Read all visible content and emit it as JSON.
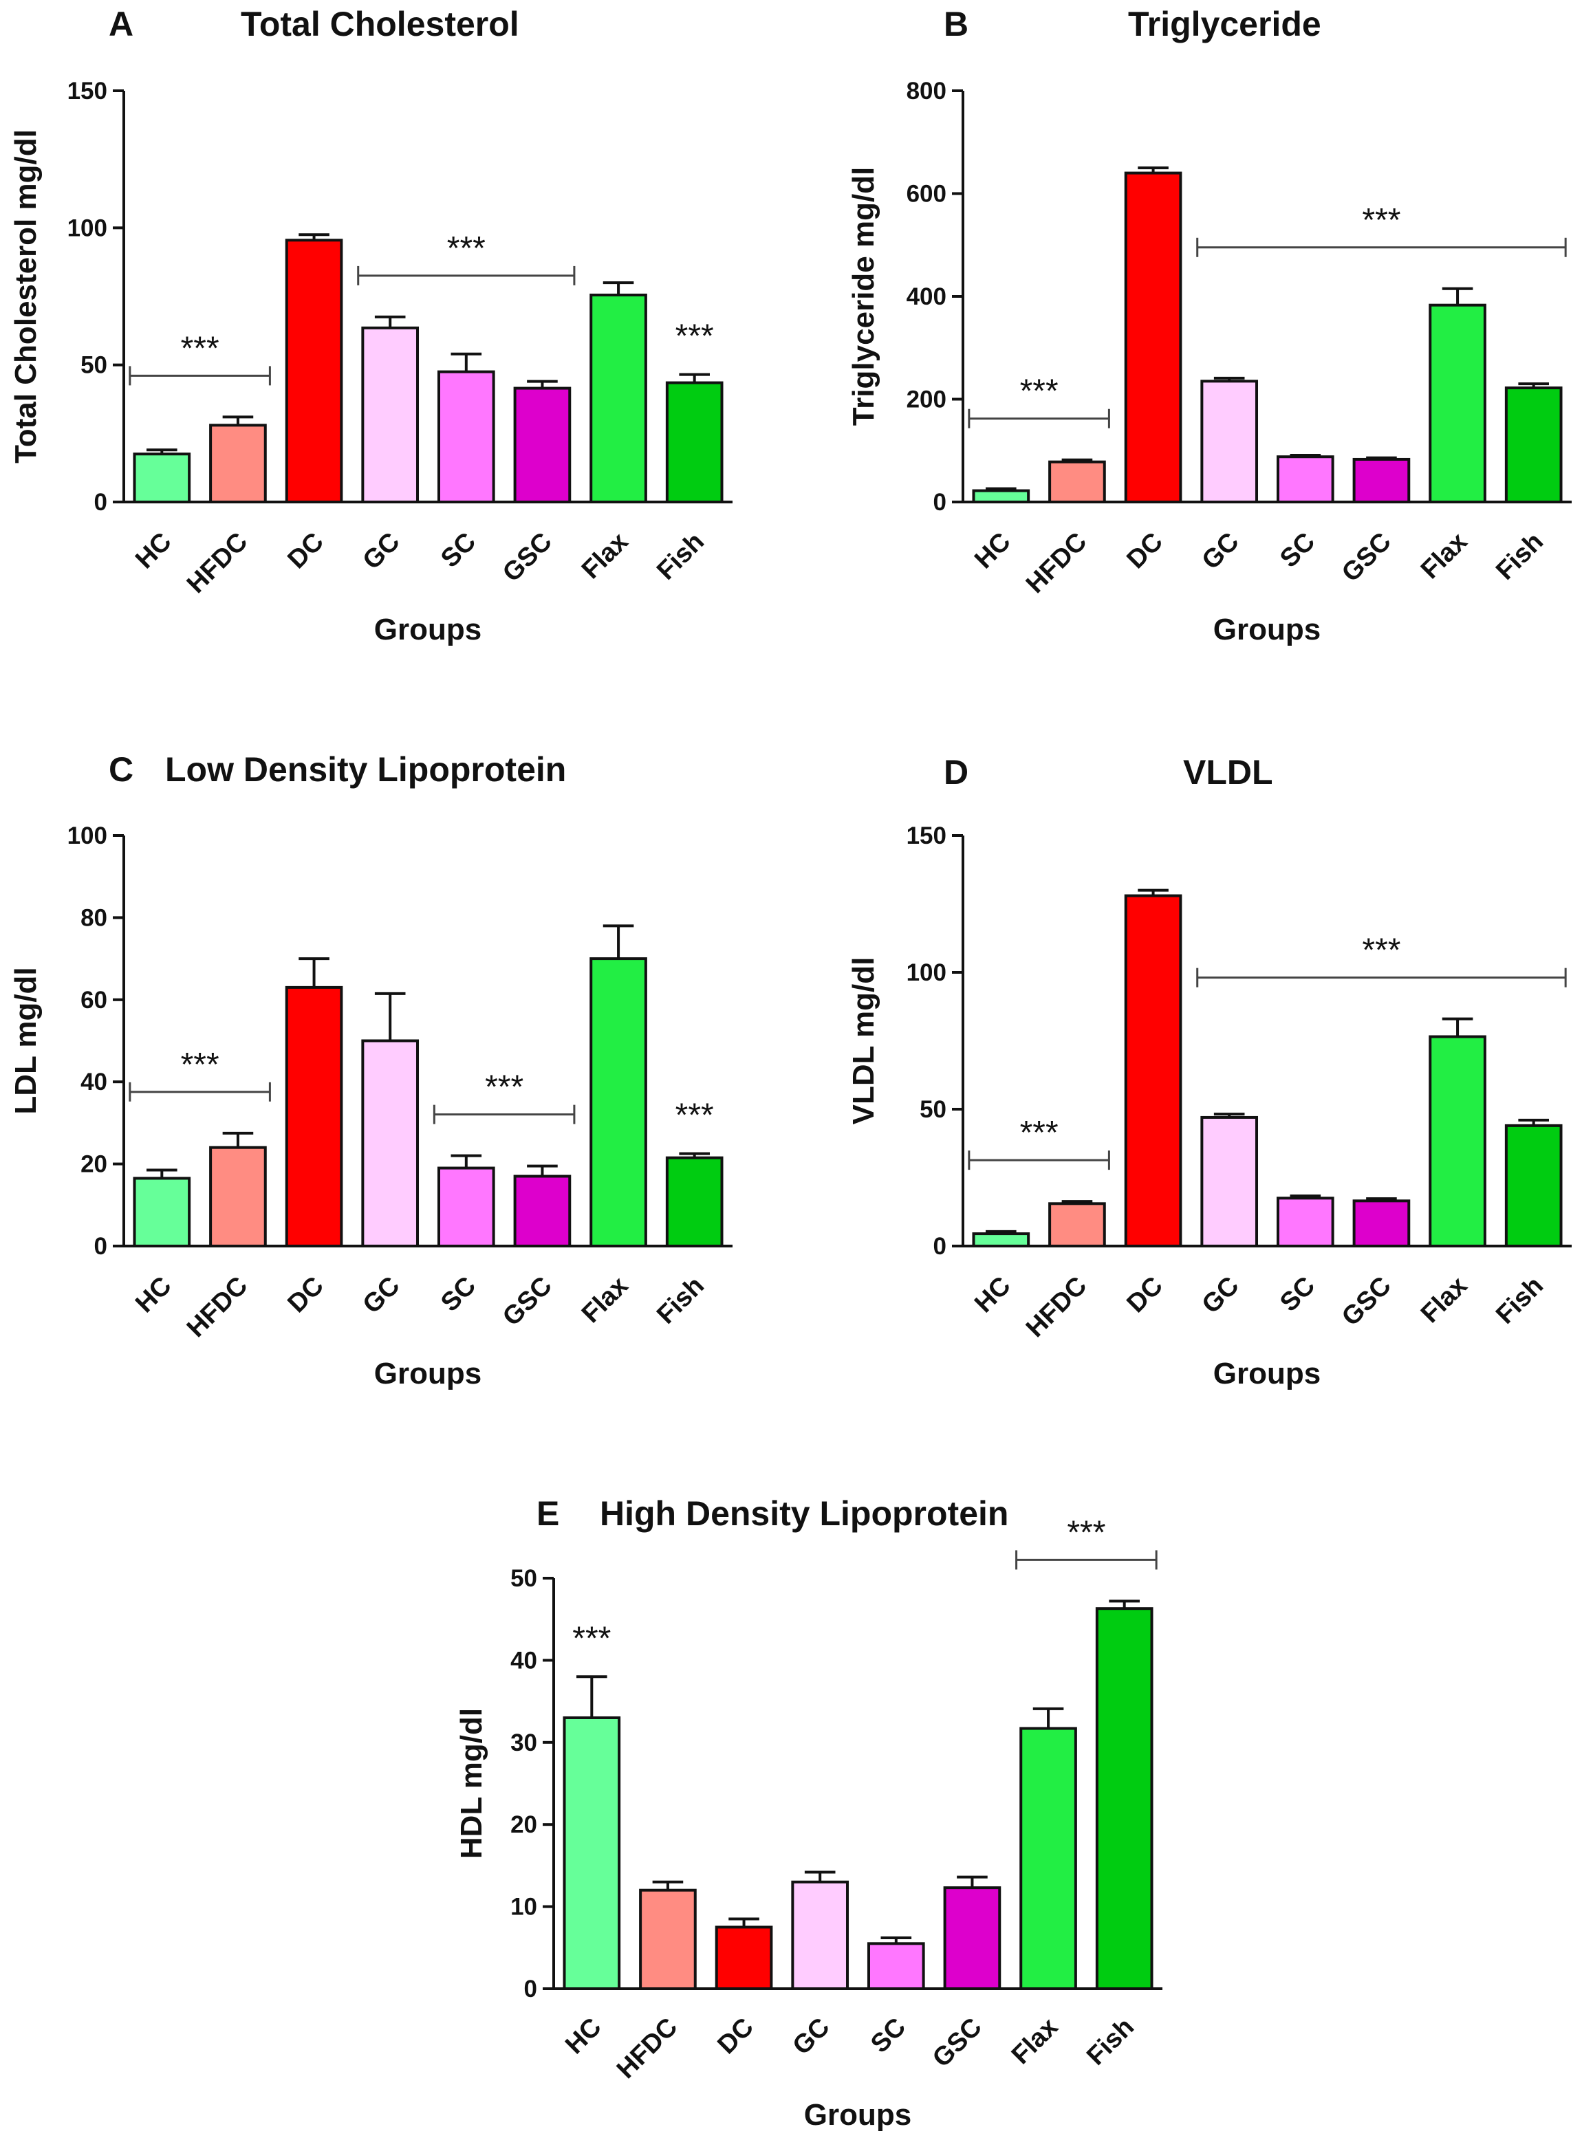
{
  "chart_data": [
    {
      "panel": "A",
      "type": "bar",
      "title": "Total Cholesterol",
      "xlabel": "Groups",
      "ylabel": "Total Cholesterol mg/dl",
      "ylim": [
        0,
        150
      ],
      "yticks": [
        0,
        50,
        100,
        150
      ],
      "categories": [
        "HC",
        "HFDC",
        "DC",
        "GC",
        "SC",
        "GSC",
        "Flax",
        "Fish"
      ],
      "values": [
        17.5,
        28,
        95.5,
        63.5,
        47.5,
        41.5,
        75.5,
        43.5
      ],
      "errors": [
        1.5,
        3,
        2,
        4,
        6.5,
        2.5,
        4.5,
        3
      ],
      "colors": [
        "#66ff99",
        "#ff8c82",
        "#ff0000",
        "#ffccff",
        "#ff77ff",
        "#dd00cc",
        "#22ee44",
        "#00cc11"
      ],
      "significance": [
        {
          "label": "***",
          "from": 0,
          "to": 1
        },
        {
          "label": "***",
          "from": 3,
          "to": 5
        },
        {
          "label": "***",
          "at": 7
        }
      ]
    },
    {
      "panel": "B",
      "type": "bar",
      "title": "Triglyceride",
      "xlabel": "Groups",
      "ylabel": "Triglyceride mg/dl",
      "ylim": [
        0,
        800
      ],
      "yticks": [
        0,
        200,
        400,
        600,
        800
      ],
      "categories": [
        "HC",
        "HFDC",
        "DC",
        "GC",
        "SC",
        "GSC",
        "Flax",
        "Fish"
      ],
      "values": [
        22,
        78,
        640,
        235,
        88,
        83,
        383,
        222
      ],
      "errors": [
        4,
        4,
        10,
        6,
        3,
        3,
        32,
        8
      ],
      "colors": [
        "#66ff99",
        "#ff8c82",
        "#ff0000",
        "#ffccff",
        "#ff77ff",
        "#dd00cc",
        "#22ee44",
        "#00cc11"
      ],
      "significance": [
        {
          "label": "***",
          "from": 0,
          "to": 1
        },
        {
          "label": "***",
          "from": 3,
          "to": 7
        }
      ]
    },
    {
      "panel": "C",
      "type": "bar",
      "title": "Low Density Lipoprotein",
      "xlabel": "Groups",
      "ylabel": "LDL mg/dl",
      "ylim": [
        0,
        100
      ],
      "yticks": [
        0,
        20,
        40,
        60,
        80,
        100
      ],
      "categories": [
        "HC",
        "HFDC",
        "DC",
        "GC",
        "SC",
        "GSC",
        "Flax",
        "Fish"
      ],
      "values": [
        16.5,
        24,
        63,
        50,
        19,
        17,
        70,
        21.5
      ],
      "errors": [
        2,
        3.5,
        7,
        11.5,
        3,
        2.5,
        8,
        1
      ],
      "colors": [
        "#66ff99",
        "#ff8c82",
        "#ff0000",
        "#ffccff",
        "#ff77ff",
        "#dd00cc",
        "#22ee44",
        "#00cc11"
      ],
      "significance": [
        {
          "label": "***",
          "from": 0,
          "to": 1
        },
        {
          "label": "***",
          "from": 4,
          "to": 5
        },
        {
          "label": "***",
          "at": 7
        }
      ]
    },
    {
      "panel": "D",
      "type": "bar",
      "title": "VLDL",
      "xlabel": "Groups",
      "ylabel": "VLDL mg/dl",
      "ylim": [
        0,
        150
      ],
      "yticks": [
        0,
        50,
        100,
        150
      ],
      "categories": [
        "HC",
        "HFDC",
        "DC",
        "GC",
        "SC",
        "GSC",
        "Flax",
        "Fish"
      ],
      "values": [
        4.5,
        15.5,
        128,
        47,
        17.5,
        16.5,
        76.5,
        44
      ],
      "errors": [
        0.8,
        0.8,
        2,
        1.2,
        0.8,
        0.8,
        6.5,
        2
      ],
      "colors": [
        "#66ff99",
        "#ff8c82",
        "#ff0000",
        "#ffccff",
        "#ff77ff",
        "#dd00cc",
        "#22ee44",
        "#00cc11"
      ],
      "significance": [
        {
          "label": "***",
          "from": 0,
          "to": 1
        },
        {
          "label": "***",
          "from": 3,
          "to": 7
        }
      ]
    },
    {
      "panel": "E",
      "type": "bar",
      "title": "High Density Lipoprotein",
      "xlabel": "Groups",
      "ylabel": "HDL mg/dl",
      "ylim": [
        0,
        50
      ],
      "yticks": [
        0,
        10,
        20,
        30,
        40,
        50
      ],
      "categories": [
        "HC",
        "HFDC",
        "DC",
        "GC",
        "SC",
        "GSC",
        "Flax",
        "Fish"
      ],
      "values": [
        33,
        12,
        7.5,
        13,
        5.5,
        12.3,
        31.7,
        46.3
      ],
      "errors": [
        5,
        1,
        1,
        1.2,
        0.7,
        1.3,
        2.4,
        0.9
      ],
      "colors": [
        "#66ff99",
        "#ff8c82",
        "#ff0000",
        "#ffccff",
        "#ff77ff",
        "#dd00cc",
        "#22ee44",
        "#00cc11"
      ],
      "significance": [
        {
          "label": "***",
          "at": 0
        },
        {
          "label": "***",
          "from": 6,
          "to": 7
        }
      ]
    }
  ]
}
